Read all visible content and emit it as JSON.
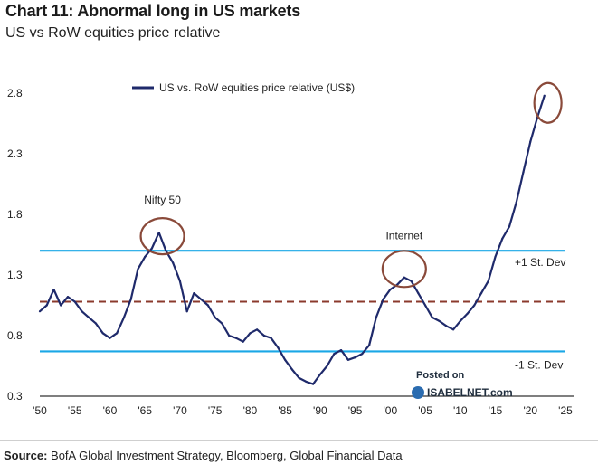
{
  "header": {
    "title": "Chart 11: Abnormal long in US markets",
    "subtitle": "US vs RoW equities price relative"
  },
  "source": {
    "label": "Source:",
    "text": "BofA Global Investment Strategy, Bloomberg, Global Financial Data"
  },
  "watermark": {
    "line1": "Posted on",
    "line2": "ISABELNET.com"
  },
  "colors": {
    "series": "#1f2a6b",
    "band": "#1aa7e6",
    "mean": "#8b3a2c",
    "circle": "#8a4a3a",
    "axis": "#333333"
  },
  "chart_data": {
    "type": "line",
    "title": "Chart 11: Abnormal long in US markets",
    "subtitle": "US vs RoW equities price relative",
    "xlim": [
      1950,
      2025
    ],
    "ylim": [
      0.3,
      2.8
    ],
    "x_ticks": [
      1950,
      1955,
      1960,
      1965,
      1970,
      1975,
      1980,
      1985,
      1990,
      1995,
      2000,
      2005,
      2010,
      2015,
      2020,
      2025
    ],
    "x_tick_labels": [
      "'50",
      "'55",
      "'60",
      "'65",
      "'70",
      "'75",
      "'80",
      "'85",
      "'90",
      "'95",
      "'00",
      "'05",
      "'10",
      "'15",
      "'20",
      "'25"
    ],
    "y_ticks": [
      0.3,
      0.8,
      1.3,
      1.8,
      2.3,
      2.8
    ],
    "y_tick_labels": [
      "0.3",
      "0.8",
      "1.3",
      "1.8",
      "2.3",
      "2.8"
    ],
    "legend": {
      "label": "US vs. RoW equities price relative (US$)",
      "placement": "top"
    },
    "series": [
      {
        "name": "US vs. RoW equities price relative (US$)",
        "x": [
          1950,
          1951,
          1952,
          1953,
          1954,
          1955,
          1956,
          1957,
          1958,
          1959,
          1960,
          1961,
          1962,
          1963,
          1964,
          1965,
          1966,
          1967,
          1968,
          1969,
          1970,
          1971,
          1972,
          1973,
          1974,
          1975,
          1976,
          1977,
          1978,
          1979,
          1980,
          1981,
          1982,
          1983,
          1984,
          1985,
          1986,
          1987,
          1988,
          1989,
          1990,
          1991,
          1992,
          1993,
          1994,
          1995,
          1996,
          1997,
          1998,
          1999,
          2000,
          2001,
          2002,
          2003,
          2004,
          2005,
          2006,
          2007,
          2008,
          2009,
          2010,
          2011,
          2012,
          2013,
          2014,
          2015,
          2016,
          2017,
          2018,
          2019,
          2020,
          2021,
          2022
        ],
        "y": [
          1.0,
          1.05,
          1.18,
          1.05,
          1.12,
          1.08,
          1.0,
          0.95,
          0.9,
          0.82,
          0.78,
          0.82,
          0.95,
          1.1,
          1.35,
          1.45,
          1.52,
          1.65,
          1.5,
          1.4,
          1.25,
          1.0,
          1.15,
          1.1,
          1.05,
          0.95,
          0.9,
          0.8,
          0.78,
          0.75,
          0.82,
          0.85,
          0.8,
          0.78,
          0.7,
          0.6,
          0.52,
          0.45,
          0.42,
          0.4,
          0.48,
          0.55,
          0.65,
          0.68,
          0.6,
          0.62,
          0.65,
          0.72,
          0.95,
          1.1,
          1.18,
          1.22,
          1.28,
          1.25,
          1.15,
          1.05,
          0.95,
          0.92,
          0.88,
          0.85,
          0.92,
          0.98,
          1.05,
          1.15,
          1.25,
          1.45,
          1.6,
          1.7,
          1.9,
          2.15,
          2.4,
          2.6,
          2.78
        ]
      }
    ],
    "reference_lines": [
      {
        "label": "+1 St. Dev",
        "y": 1.5,
        "style": "solid",
        "color": "#1aa7e6"
      },
      {
        "label": "",
        "y": 1.08,
        "style": "dashed",
        "color": "#8b3a2c"
      },
      {
        "label": "-1 St. Dev",
        "y": 0.67,
        "style": "solid",
        "color": "#1aa7e6"
      }
    ],
    "annotations": [
      {
        "text": "Nifty 50",
        "x": 1967.5,
        "y": 1.62
      },
      {
        "text": "Internet",
        "x": 2002,
        "y": 1.35
      }
    ],
    "highlight_circles": [
      {
        "x": 1967.5,
        "y": 1.62
      },
      {
        "x": 2002,
        "y": 1.35
      },
      {
        "x": 2022.5,
        "y": 2.72
      }
    ],
    "grid": false
  }
}
